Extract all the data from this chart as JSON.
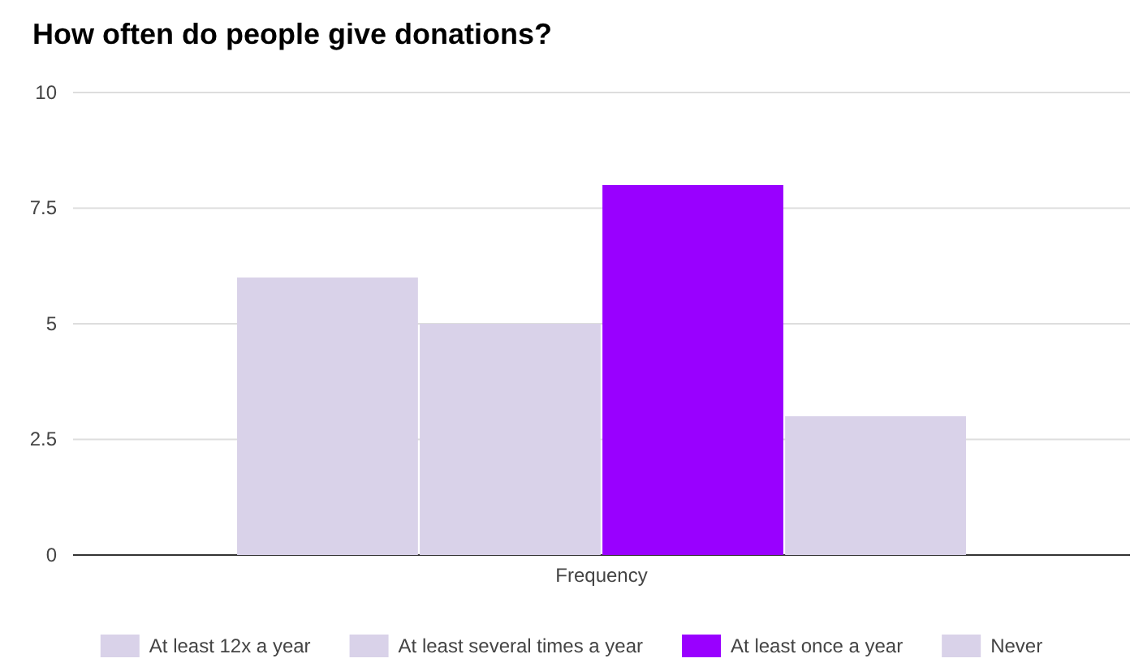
{
  "chart_data": {
    "type": "bar",
    "title": "How often do people give donations?",
    "categories": [
      "Frequency"
    ],
    "series": [
      {
        "name": "At least 12x a year",
        "color": "#d9d2e9",
        "values": [
          6
        ]
      },
      {
        "name": "At least several times a year",
        "color": "#d9d2e9",
        "values": [
          5
        ]
      },
      {
        "name": "At least once a year",
        "color": "#9900ff",
        "values": [
          8
        ]
      },
      {
        "name": "Never",
        "color": "#d9d2e9",
        "values": [
          3
        ]
      }
    ],
    "ylim": [
      0,
      10
    ],
    "yticks": [
      0,
      2.5,
      5,
      7.5,
      10
    ],
    "grid": "y",
    "legend": "bottom"
  }
}
